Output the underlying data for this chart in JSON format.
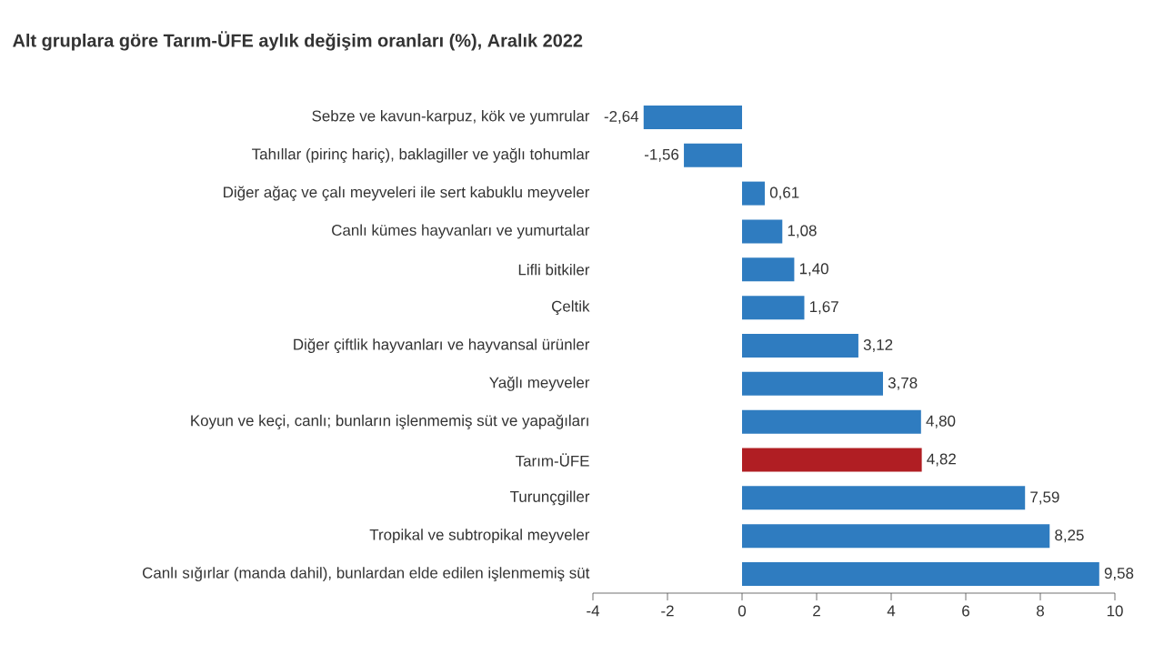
{
  "chart_data": {
    "type": "bar",
    "orientation": "horizontal",
    "title": "Alt gruplara göre Tarım-ÜFE aylık değişim oranları (%), Aralık 2022",
    "categories": [
      "Sebze ve kavun-karpuz, kök ve yumrular",
      "Tahıllar (pirinç hariç), baklagiller ve yağlı tohumlar",
      "Diğer ağaç ve çalı meyveleri ile sert kabuklu meyveler",
      "Canlı kümes hayvanları ve yumurtalar",
      "Lifli bitkiler",
      "Çeltik",
      "Diğer çiftlik hayvanları ve hayvansal ürünler",
      "Yağlı meyveler",
      "Koyun ve keçi, canlı; bunların işlenmemiş süt ve yapağıları",
      "Tarım-ÜFE",
      "Turunçgiller",
      "Tropikal ve subtropikal meyveler",
      "Canlı sığırlar (manda dahil), bunlardan elde edilen işlenmemiş süt"
    ],
    "values": [
      -2.64,
      -1.56,
      0.61,
      1.08,
      1.4,
      1.67,
      3.12,
      3.78,
      4.8,
      4.82,
      7.59,
      8.25,
      9.58
    ],
    "value_labels": [
      "-2,64",
      "-1,56",
      "0,61",
      "1,08",
      "1,40",
      "1,67",
      "3,12",
      "3,78",
      "4,80",
      "4,82",
      "7,59",
      "8,25",
      "9,58"
    ],
    "colors": [
      "#2f7cc0",
      "#2f7cc0",
      "#2f7cc0",
      "#2f7cc0",
      "#2f7cc0",
      "#2f7cc0",
      "#2f7cc0",
      "#2f7cc0",
      "#2f7cc0",
      "#b01e23",
      "#2f7cc0",
      "#2f7cc0",
      "#2f7cc0"
    ],
    "xlim": [
      -4,
      10
    ],
    "xticks": [
      -4,
      -2,
      0,
      2,
      4,
      6,
      8,
      10
    ]
  }
}
